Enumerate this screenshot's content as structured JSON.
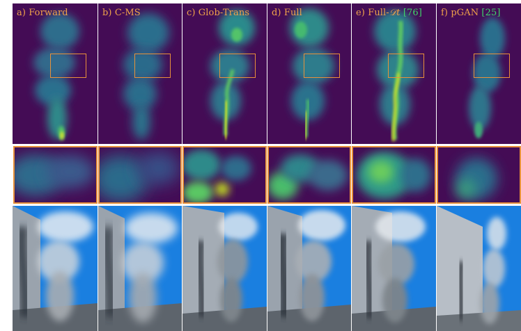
{
  "columns": [
    {
      "id": "forward",
      "label_prefix": "a) Forward",
      "label_math": "",
      "label_cite": ""
    },
    {
      "id": "c-ms",
      "label_prefix": "b) C-MS",
      "label_math": "",
      "label_cite": ""
    },
    {
      "id": "glob-trans",
      "label_prefix": "c) Glob-Trans",
      "label_math": "",
      "label_cite": ""
    },
    {
      "id": "full",
      "label_prefix": "d) Full",
      "label_math": "",
      "label_cite": ""
    },
    {
      "id": "full-dt",
      "label_prefix": "e) Full-",
      "label_math": "𝒟t",
      "label_cite": "[76]"
    },
    {
      "id": "pgan",
      "label_prefix": "f) pGAN",
      "label_math": "",
      "label_cite": "[25]"
    }
  ],
  "colors": {
    "density_background": "#440c55",
    "highlight_box": "#e8913a",
    "label_text": "#f0a24a",
    "citation_text": "#3fd66a",
    "render_sky": "#1a7fe0",
    "render_wall": "#9aa3ad",
    "render_floor": "#5d646c"
  }
}
